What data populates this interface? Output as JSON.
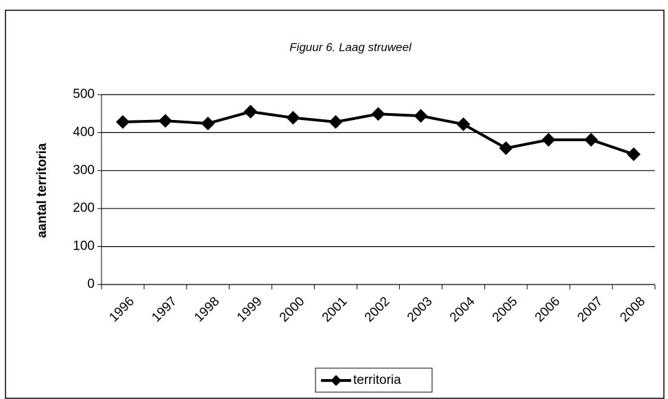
{
  "chart_data": {
    "type": "line",
    "title": "Figuur 6. Laag struweel",
    "y_label": "aantal territoria",
    "categories": [
      "1996",
      "1997",
      "1998",
      "1999",
      "2000",
      "2001",
      "2002",
      "2003",
      "2004",
      "2005",
      "2006",
      "2007",
      "2008"
    ],
    "series": [
      {
        "name": "territoria",
        "color": "#000000",
        "values": [
          428,
          431,
          424,
          455,
          439,
          428,
          449,
          444,
          422,
          359,
          381,
          381,
          343
        ]
      }
    ],
    "ylim": [
      0,
      500
    ],
    "yticks": [
      0,
      100,
      200,
      300,
      400,
      500
    ],
    "grid": true,
    "legend": "bottom"
  }
}
